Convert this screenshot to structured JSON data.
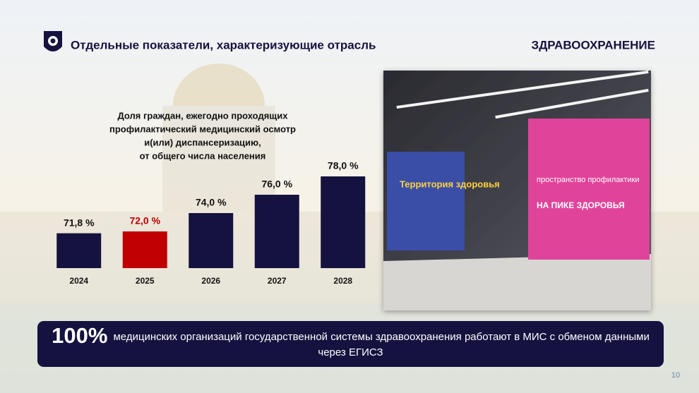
{
  "header": {
    "title": "Отдельные показатели, характеризующие отрасль",
    "section": "ЗДРАВООХРАНЕНИЕ"
  },
  "chart_data": {
    "type": "bar",
    "title": [
      "Доля граждан, ежегодно проходящих",
      "профилактический медицинский осмотр",
      "и(или) диспансеризацию,",
      "от общего числа населения"
    ],
    "categories": [
      "2024",
      "2025",
      "2026",
      "2027",
      "2028"
    ],
    "values": [
      71.8,
      72.0,
      74.0,
      76.0,
      78.0
    ],
    "value_labels": [
      "71,8 %",
      "72,0 %",
      "74,0 %",
      "76,0 %",
      "78,0 %"
    ],
    "colors": [
      "#15123f",
      "#c00000",
      "#15123f",
      "#15123f",
      "#15123f"
    ],
    "label_colors": [
      "#111111",
      "#c00000",
      "#111111",
      "#111111",
      "#111111"
    ],
    "ylim": [
      68,
      79
    ]
  },
  "photo": {
    "signs": [
      "Территория здоровья",
      "пространство профилактики",
      "НА ПИКЕ ЗДОРОВЬЯ"
    ]
  },
  "banner": {
    "highlight": "100%",
    "text": "медицинских организаций государственной системы здравоохранения работают в МИС с обменом данными через ЕГИСЗ"
  },
  "page_number": "10"
}
